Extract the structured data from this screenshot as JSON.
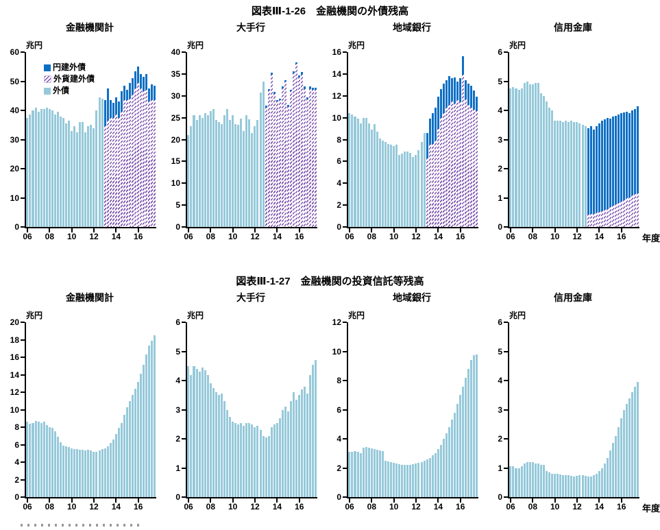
{
  "figures": [
    {
      "title": "図表Ⅲ-1-26　金融機関の外債残高",
      "year_axis_label": "年度",
      "legend": [
        {
          "label": "円建外債",
          "color": "#0d6fc4",
          "style": "solid"
        },
        {
          "label": "外貨建外債",
          "color": "#7b4fae",
          "style": "hatched"
        },
        {
          "label": "外債",
          "color": "#96c9da",
          "style": "solid"
        }
      ]
    },
    {
      "title": "図表Ⅲ-1-27　金融機関の投資信託等残高",
      "year_axis_label": "年度"
    }
  ],
  "colors": {
    "yen_denominated_foreign_bond": "#0d6fc4",
    "fx_denominated_foreign_bond_hatch": "#7b4fae",
    "foreign_bond_light": "#96c9da",
    "axis": "#000000"
  },
  "chart_data": [
    {
      "figure": "図表Ⅲ-1-26",
      "title": "金融機関計",
      "unit": "兆円",
      "type": "bar",
      "stacked": true,
      "x_quarterly_fiscal_years": "FY2006Q1-FY2017Q3",
      "x_tick_labels": [
        "06",
        "08",
        "10",
        "12",
        "14",
        "16"
      ],
      "x_tick_indices": [
        0,
        8,
        16,
        24,
        32,
        40
      ],
      "ylim": [
        0,
        60
      ],
      "ytick_step": 10,
      "series": [
        {
          "name": "外債",
          "color": "#96c9da",
          "pattern": "solid",
          "values": [
            37.5,
            38.5,
            40,
            41,
            39.5,
            40.5,
            40.5,
            41,
            40.5,
            40,
            38.5,
            39.5,
            38,
            37.5,
            35.5,
            36.5,
            33,
            34.5,
            32.5,
            36,
            36,
            32.5,
            34.5,
            35,
            34,
            40,
            44.5,
            44,
            0,
            0,
            0,
            0,
            0,
            0,
            0,
            0,
            0,
            0,
            0,
            0,
            0,
            0,
            0,
            0,
            0,
            0,
            0
          ]
        },
        {
          "name": "外貨建外債",
          "color": "#7b4fae",
          "pattern": "hatch",
          "values": [
            0,
            0,
            0,
            0,
            0,
            0,
            0,
            0,
            0,
            0,
            0,
            0,
            0,
            0,
            0,
            0,
            0,
            0,
            0,
            0,
            0,
            0,
            0,
            0,
            0,
            0,
            0,
            0,
            34.5,
            36.5,
            37.5,
            37.5,
            38.5,
            37.5,
            39.5,
            43.5,
            43.5,
            44,
            45.5,
            47.5,
            49.5,
            47.5,
            46.5,
            47,
            43,
            43.5,
            43.5
          ]
        },
        {
          "name": "円建外債",
          "color": "#0d6fc4",
          "pattern": "solid",
          "values": [
            0,
            0,
            0,
            0,
            0,
            0,
            0,
            0,
            0,
            0,
            0,
            0,
            0,
            0,
            0,
            0,
            0,
            0,
            0,
            0,
            0,
            0,
            0,
            0,
            0,
            0,
            0,
            0,
            9,
            11,
            6,
            5,
            6,
            5.5,
            7,
            5,
            3.5,
            5.5,
            5.5,
            6,
            5.5,
            5,
            5,
            5.5,
            4.5,
            5.5,
            5
          ]
        }
      ]
    },
    {
      "figure": "図表Ⅲ-1-26",
      "title": "大手行",
      "unit": "兆円",
      "type": "bar",
      "stacked": true,
      "x_tick_labels": [
        "06",
        "08",
        "10",
        "12",
        "14",
        "16"
      ],
      "x_tick_indices": [
        0,
        8,
        16,
        24,
        32,
        40
      ],
      "ylim": [
        0,
        40
      ],
      "ytick_step": 5,
      "series": [
        {
          "name": "外債",
          "color": "#96c9da",
          "pattern": "solid",
          "values": [
            21,
            23,
            25.5,
            24.5,
            25.5,
            25,
            26,
            25.5,
            26.5,
            27,
            24.5,
            24,
            23.5,
            25.5,
            27,
            24.5,
            25.5,
            23.5,
            23.3,
            24.8,
            22,
            25.5,
            24.6,
            21.5,
            23,
            24.5,
            30.7,
            33.2,
            0,
            0,
            0,
            0,
            0,
            0,
            0,
            0,
            0,
            0,
            0,
            0,
            0,
            0,
            0,
            0,
            0,
            0,
            0
          ]
        },
        {
          "name": "外貨建外債",
          "color": "#7b4fae",
          "pattern": "hatch",
          "values": [
            0,
            0,
            0,
            0,
            0,
            0,
            0,
            0,
            0,
            0,
            0,
            0,
            0,
            0,
            0,
            0,
            0,
            0,
            0,
            0,
            0,
            0,
            0,
            0,
            0,
            0,
            0,
            0,
            27.3,
            31.2,
            34.8,
            30.5,
            28.7,
            29,
            31.7,
            33.2,
            27.5,
            31,
            35.2,
            37.3,
            34.2,
            34.9,
            31.6,
            29.2,
            31.6,
            31.4,
            31.3
          ]
        },
        {
          "name": "円建外債",
          "color": "#0d6fc4",
          "pattern": "solid",
          "values": [
            0,
            0,
            0,
            0,
            0,
            0,
            0,
            0,
            0,
            0,
            0,
            0,
            0,
            0,
            0,
            0,
            0,
            0,
            0,
            0,
            0,
            0,
            0,
            0,
            0,
            0,
            0,
            0,
            0.4,
            0.4,
            0.5,
            0.4,
            0.4,
            0.4,
            0.4,
            0.4,
            0.4,
            0.4,
            0.4,
            0.4,
            0.4,
            0.5,
            0.5,
            0.4,
            0.5,
            0.4,
            0.5
          ]
        }
      ]
    },
    {
      "figure": "図表Ⅲ-1-26",
      "title": "地域銀行",
      "unit": "兆円",
      "type": "bar",
      "stacked": true,
      "x_tick_labels": [
        "06",
        "08",
        "10",
        "12",
        "14",
        "16"
      ],
      "x_tick_indices": [
        0,
        8,
        16,
        24,
        32,
        40
      ],
      "ylim": [
        0,
        16
      ],
      "ytick_step": 2,
      "series": [
        {
          "name": "外債",
          "color": "#96c9da",
          "pattern": "solid",
          "values": [
            10.4,
            10.3,
            10.1,
            9.9,
            9.5,
            10,
            10,
            9.5,
            8.9,
            9.4,
            8.7,
            8.1,
            7.9,
            7.8,
            7.6,
            7.5,
            7.4,
            7.5,
            6.6,
            6.7,
            6.9,
            6.9,
            6.8,
            6.4,
            6.6,
            7,
            7.8,
            8.6,
            0,
            0,
            0,
            0,
            0,
            0,
            0,
            0,
            0,
            0,
            0,
            0,
            0,
            0,
            0,
            0,
            0,
            0,
            0
          ]
        },
        {
          "name": "外貨建外債",
          "color": "#7b4fae",
          "pattern": "hatch",
          "values": [
            0,
            0,
            0,
            0,
            0,
            0,
            0,
            0,
            0,
            0,
            0,
            0,
            0,
            0,
            0,
            0,
            0,
            0,
            0,
            0,
            0,
            0,
            0,
            0,
            0,
            0,
            0,
            0,
            6.3,
            7.5,
            7.6,
            7.9,
            9,
            10,
            10.4,
            10.9,
            11.2,
            11.5,
            11.3,
            11.6,
            11.4,
            13.9,
            11.7,
            11.2,
            10.9,
            10.7,
            10.6
          ]
        },
        {
          "name": "円建外債",
          "color": "#0d6fc4",
          "pattern": "solid",
          "values": [
            0,
            0,
            0,
            0,
            0,
            0,
            0,
            0,
            0,
            0,
            0,
            0,
            0,
            0,
            0,
            0,
            0,
            0,
            0,
            0,
            0,
            0,
            0,
            0,
            0,
            0,
            0,
            0,
            2.3,
            2.4,
            2.8,
            3,
            2.9,
            2.6,
            2.7,
            2.5,
            2.6,
            2.1,
            2.4,
            1.7,
            2.2,
            1.7,
            1.7,
            1.9,
            2,
            1.8,
            1.3
          ]
        }
      ]
    },
    {
      "figure": "図表Ⅲ-1-26",
      "title": "信用金庫",
      "unit": "兆円",
      "type": "bar",
      "stacked": true,
      "x_tick_labels": [
        "06",
        "08",
        "10",
        "12",
        "14",
        "16"
      ],
      "x_tick_indices": [
        0,
        8,
        16,
        24,
        32,
        40
      ],
      "ylim": [
        0,
        6
      ],
      "ytick_step": 1,
      "series": [
        {
          "name": "外債",
          "color": "#96c9da",
          "pattern": "solid",
          "values": [
            4.75,
            4.8,
            4.75,
            4.7,
            4.75,
            4.95,
            5,
            4.9,
            4.9,
            4.95,
            4.95,
            4.6,
            4.5,
            4.3,
            4.1,
            4,
            3.65,
            3.65,
            3.65,
            3.6,
            3.65,
            3.6,
            3.65,
            3.6,
            3.6,
            3.55,
            3.5,
            3.45,
            0,
            0,
            0,
            0,
            0,
            0,
            0,
            0,
            0,
            0,
            0,
            0,
            0,
            0,
            0,
            0,
            0,
            0,
            0
          ]
        },
        {
          "name": "外貨建外債",
          "color": "#7b4fae",
          "pattern": "hatch",
          "values": [
            0,
            0,
            0,
            0,
            0,
            0,
            0,
            0,
            0,
            0,
            0,
            0,
            0,
            0,
            0,
            0,
            0,
            0,
            0,
            0,
            0,
            0,
            0,
            0,
            0,
            0,
            0,
            0,
            0.42,
            0.45,
            0.45,
            0.5,
            0.52,
            0.55,
            0.6,
            0.62,
            0.68,
            0.72,
            0.78,
            0.82,
            0.88,
            0.92,
            0.98,
            1.02,
            1.08,
            1.12,
            1.15
          ]
        },
        {
          "name": "円建外債",
          "color": "#0d6fc4",
          "pattern": "solid",
          "values": [
            0,
            0,
            0,
            0,
            0,
            0,
            0,
            0,
            0,
            0,
            0,
            0,
            0,
            0,
            0,
            0,
            0,
            0,
            0,
            0,
            0,
            0,
            0,
            0,
            0,
            0,
            0,
            0,
            2.98,
            3,
            2.9,
            2.95,
            3.03,
            3.1,
            3.1,
            3.13,
            3.04,
            3.06,
            3.04,
            3.05,
            3.02,
            3,
            2.97,
            2.88,
            2.92,
            2.93,
            3
          ]
        }
      ]
    },
    {
      "figure": "図表Ⅲ-1-27",
      "title": "金融機関計",
      "unit": "兆円",
      "type": "bar",
      "stacked": false,
      "x_tick_labels": [
        "06",
        "08",
        "10",
        "12",
        "14",
        "16"
      ],
      "x_tick_indices": [
        0,
        8,
        16,
        24,
        32,
        40
      ],
      "ylim": [
        0,
        20
      ],
      "ytick_step": 2,
      "series": [
        {
          "color": "#96c9da",
          "pattern": "solid",
          "values": [
            8.6,
            8.4,
            8.5,
            8.7,
            8.6,
            8.5,
            8.6,
            8.2,
            8,
            7.9,
            7.5,
            6.9,
            6.3,
            5.9,
            5.8,
            5.7,
            5.6,
            5.5,
            5.5,
            5.4,
            5.4,
            5.3,
            5.4,
            5.3,
            5.2,
            5.2,
            5.3,
            5.5,
            5.6,
            5.8,
            6.2,
            6.6,
            7.2,
            7.9,
            8.5,
            9.4,
            10.3,
            11,
            11.7,
            12.4,
            13.2,
            14.1,
            15.1,
            16.3,
            17.3,
            17.9,
            18.5
          ]
        }
      ]
    },
    {
      "figure": "図表Ⅲ-1-27",
      "title": "大手行",
      "unit": "兆円",
      "type": "bar",
      "stacked": false,
      "x_tick_labels": [
        "06",
        "08",
        "10",
        "12",
        "14",
        "16"
      ],
      "x_tick_indices": [
        0,
        8,
        16,
        24,
        32,
        40
      ],
      "ylim": [
        0,
        6
      ],
      "ytick_step": 1,
      "series": [
        {
          "color": "#96c9da",
          "pattern": "solid",
          "values": [
            4.5,
            4.2,
            4.5,
            4.4,
            4.3,
            4.45,
            4.35,
            4.2,
            3.9,
            3.75,
            3.6,
            3.5,
            3.55,
            3.3,
            3,
            2.75,
            2.6,
            2.55,
            2.5,
            2.55,
            2.45,
            2.55,
            2.55,
            2.5,
            2.4,
            2.45,
            2.3,
            2.1,
            2.05,
            2.1,
            2.4,
            2.5,
            2.55,
            2.7,
            3,
            3.1,
            2.95,
            3.3,
            3.6,
            3.35,
            3.5,
            3.7,
            3.8,
            3.55,
            4.2,
            4.55,
            4.7
          ]
        }
      ]
    },
    {
      "figure": "図表Ⅲ-1-27",
      "title": "地域銀行",
      "unit": "兆円",
      "type": "bar",
      "stacked": false,
      "x_tick_labels": [
        "06",
        "08",
        "10",
        "12",
        "14",
        "16"
      ],
      "x_tick_indices": [
        0,
        8,
        16,
        24,
        32,
        40
      ],
      "ylim": [
        0,
        12
      ],
      "ytick_step": 2,
      "series": [
        {
          "color": "#96c9da",
          "pattern": "solid",
          "values": [
            3.1,
            3.1,
            3.15,
            3.1,
            3,
            3.4,
            3.45,
            3.4,
            3.35,
            3.3,
            3.25,
            3.2,
            3.15,
            2.5,
            2.45,
            2.4,
            2.35,
            2.3,
            2.25,
            2.2,
            2.2,
            2.2,
            2.2,
            2.25,
            2.3,
            2.35,
            2.4,
            2.5,
            2.6,
            2.7,
            2.85,
            3,
            3.3,
            3.6,
            4,
            4.4,
            4.8,
            5.3,
            5.8,
            6.4,
            7,
            7.6,
            8.2,
            8.8,
            9.4,
            9.75,
            9.8
          ]
        }
      ]
    },
    {
      "figure": "図表Ⅲ-1-27",
      "title": "信用金庫",
      "unit": "兆円",
      "type": "bar",
      "stacked": false,
      "x_tick_labels": [
        "06",
        "08",
        "10",
        "12",
        "14",
        "16"
      ],
      "x_tick_indices": [
        0,
        8,
        16,
        24,
        32,
        40
      ],
      "ylim": [
        0,
        6
      ],
      "ytick_step": 1,
      "series": [
        {
          "color": "#96c9da",
          "pattern": "solid",
          "values": [
            1.05,
            1.05,
            1,
            1,
            1.05,
            1.15,
            1.2,
            1.2,
            1.2,
            1.15,
            1.15,
            1.1,
            1.1,
            0.9,
            0.85,
            0.8,
            0.8,
            0.8,
            0.78,
            0.75,
            0.75,
            0.75,
            0.73,
            0.7,
            0.73,
            0.75,
            0.75,
            0.73,
            0.7,
            0.7,
            0.75,
            0.8,
            0.9,
            1,
            1.15,
            1.35,
            1.6,
            1.85,
            2.1,
            2.4,
            2.7,
            3,
            3.2,
            3.4,
            3.6,
            3.8,
            3.95
          ]
        }
      ]
    }
  ]
}
